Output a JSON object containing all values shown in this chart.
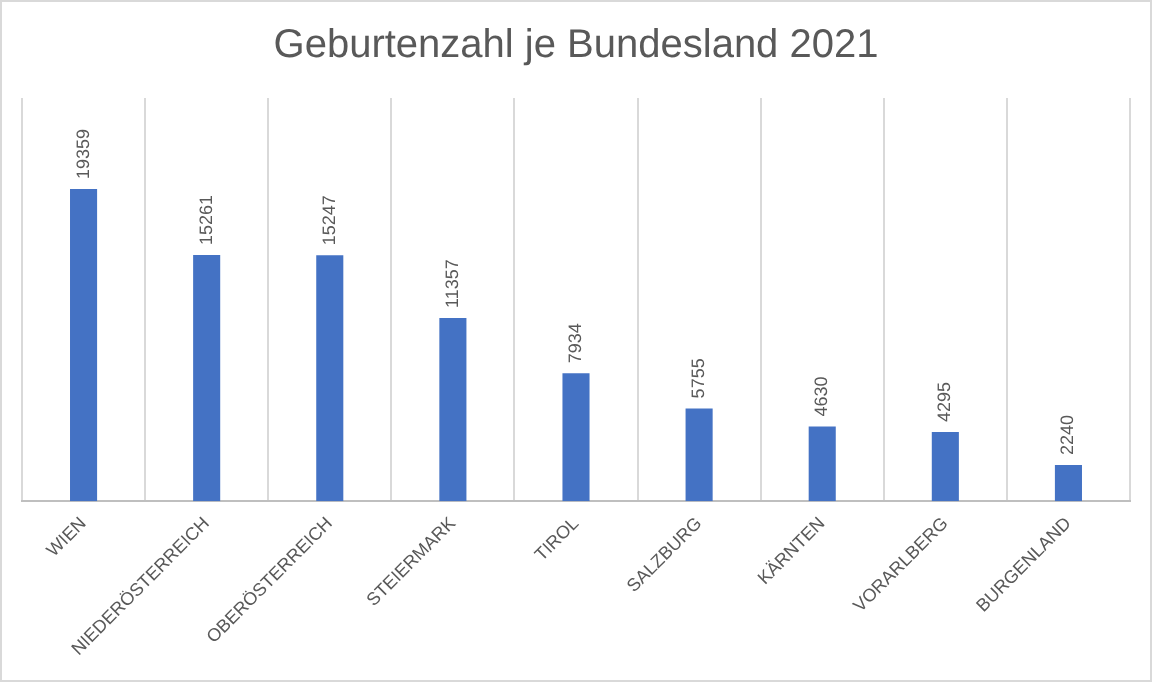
{
  "chart_data": {
    "type": "bar",
    "title": "Geburtenzahl je Bundesland 2021",
    "categories": [
      "WIEN",
      "NIEDERÖSTERREICH",
      "OBERÖSTERREICH",
      "STEIERMARK",
      "TIROL",
      "SALZBURG",
      "KÄRNTEN",
      "VORARLBERG",
      "BURGENLAND"
    ],
    "values": [
      19359,
      15261,
      15247,
      11357,
      7934,
      5755,
      4630,
      4295,
      2240
    ],
    "color": "#4472c4",
    "data_labels": true,
    "grid": "x",
    "tick_labels": "x"
  }
}
